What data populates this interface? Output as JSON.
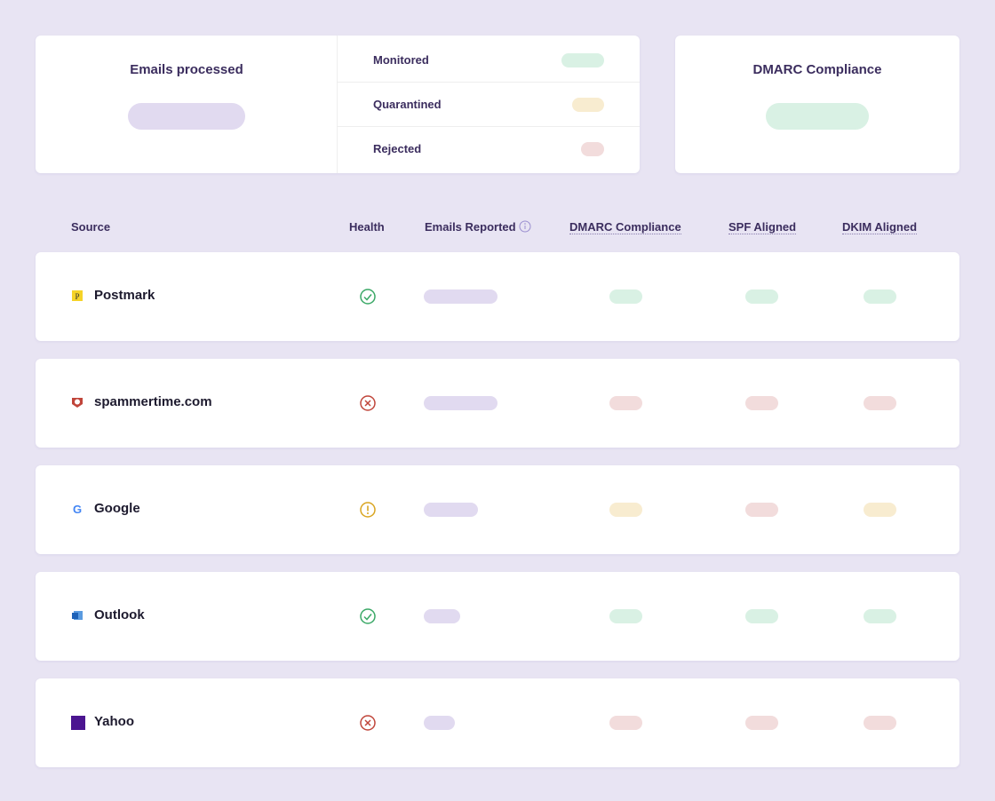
{
  "summary": {
    "processed_title": "Emails processed",
    "breakdown": [
      "Monitored",
      "Quarantined",
      "Rejected"
    ],
    "compliance_title": "DMARC Compliance"
  },
  "table": {
    "headers": [
      "Source",
      "Health",
      "Emails Reported",
      "DMARC Compliance",
      "SPF Aligned",
      "DKIM Aligned"
    ],
    "rows": [
      "Postmark",
      "spammertime.com",
      "Google",
      "Outlook",
      "Yahoo"
    ]
  }
}
